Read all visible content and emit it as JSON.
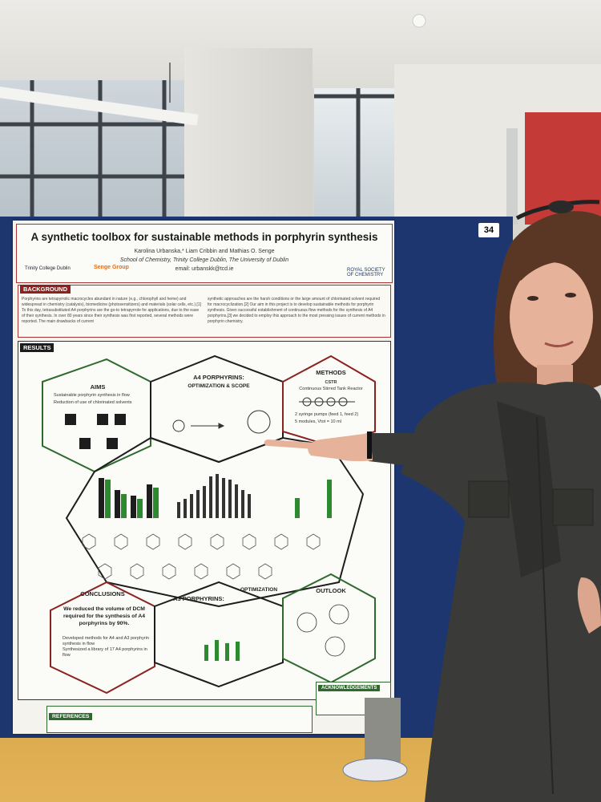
{
  "board": {
    "number": "34"
  },
  "poster": {
    "title": "A synthetic toolbox for sustainable methods in porphyrin synthesis",
    "authors": "Karolina Urbanska,* Liam Cribbin and Mathias O. Senge",
    "affiliation": "School of Chemistry, Trinity College Dublin, The University of Dublin",
    "email": "email: urbanskk@tcd.ie",
    "logo_tcd": "Trinity College Dublin",
    "logo_senge": "Senge Group",
    "logo_rsc": "ROYAL SOCIETY OF CHEMISTRY",
    "background_label": "BACKGROUND",
    "background_col1": "Porphyrins are tetrapyrrolic macrocycles abundant in nature (e.g., chlorophyll and heme) and widespread in chemistry (catalysis), biomedicine (photosensitizers) and materials (solar cells, etc.).[1] To this day, tetrasubstituted A4 porphyrins are the go-to tetrapyrrole for applications, due to the ease of their synthesis. In over 80 years since their synthesis was first reported, several methods were reported. The main drawbacks of current",
    "background_col2": "synthetic approaches are the harsh conditions or the large amount of chlorinated solvent required for macrocyclization.[2] Our aim in this project is to develop sustainable methods for porphyrin synthesis. Given successful establishment of continuous flow methods for the synthesis of A4 porphyrins,[3] we decided to employ this approach to the most pressing issues of current methods in porphyrin chemistry.",
    "results_label": "RESULTS",
    "aims_title": "AIMS",
    "aims_items": [
      "Sustainable porphyrin synthesis in flow",
      "Reduction of use of chlorinated solvents"
    ],
    "a4_title": "A4 PORPHYRINS:",
    "a4_subtitle": "OPTIMIZATION & SCOPE",
    "methods_title": "METHODS",
    "methods_cstr": "CSTR",
    "methods_cstr_full": "Continuous Stirred Tank Reactor",
    "methods_items": [
      "2 syringe pumps (feed 1, feed 2)",
      "5 modules, Vtot = 10 ml"
    ],
    "conclusions_title": "CONCLUSIONS",
    "conclusions_text": "We reduced the volume of DCM required for the synthesis of A4 porphyrins by 90%.",
    "conclusions_items": [
      "Developed methods for A4 and A3 porphyrin synthesis in flow",
      "Synthesized a library of 17 A4 porphyrins in flow"
    ],
    "a3_title": "A3 PORPHYRINS:",
    "a3_subtitle": "OPTIMIZATION",
    "outlook_title": "OUTLOOK",
    "references_label": "REFERENCES",
    "ack_label": "ACKNOWLEDGEMENTS"
  },
  "colors": {
    "board": "#1e3670",
    "poster_accent": "#8a2320",
    "hex_green": "#2e6a2e",
    "hex_dark": "#1d1d1d",
    "wall_red": "#c43a36",
    "jacket": "#3a3a38"
  }
}
